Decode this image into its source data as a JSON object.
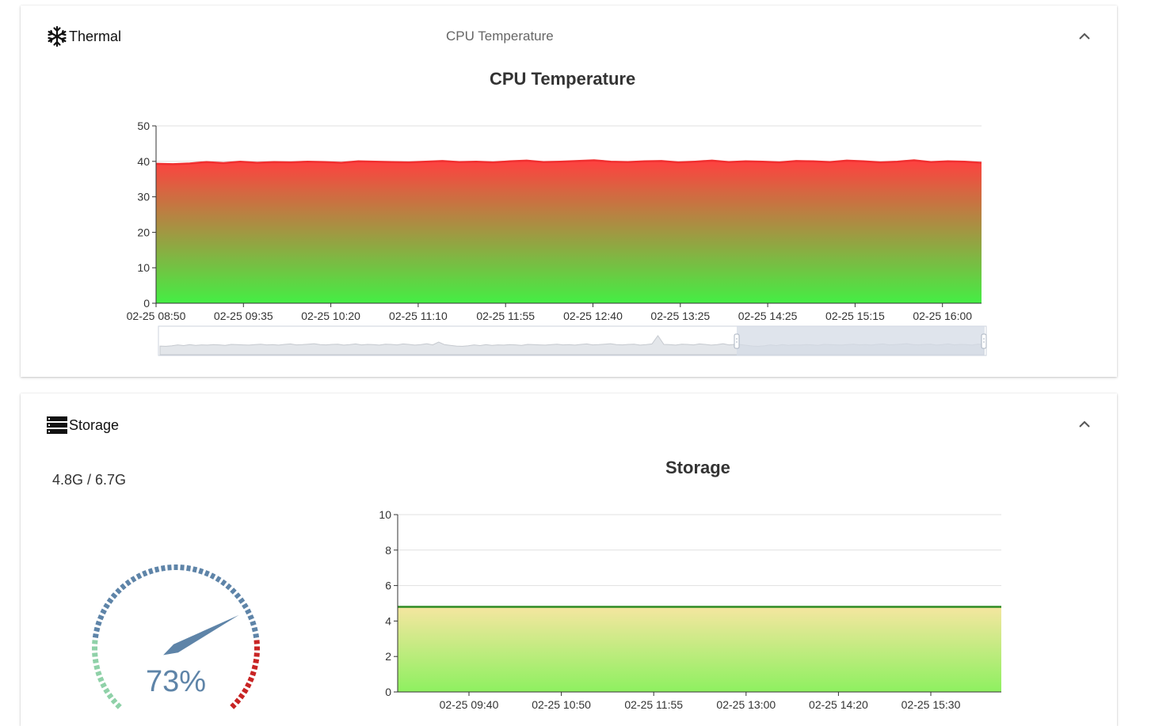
{
  "thermal": {
    "title": "Thermal",
    "subtitle": "CPU Temperature",
    "chart_title": "CPU Temperature",
    "icon": "snowflake-icon",
    "collapse_icon": "chevron-up-icon"
  },
  "storage": {
    "title": "Storage",
    "icon": "storage-icon",
    "usage_text": "4.8G / 6.7G",
    "gauge_percent_label": "73%",
    "gauge_value": 73,
    "chart_title": "Storage",
    "collapse_icon": "chevron-up-icon"
  },
  "colors": {
    "thermal_line": "#f03030",
    "thermal_fill_top": "#ff4040",
    "thermal_fill_bottom": "#44ee44",
    "storage_line": "#2e8b22",
    "storage_fill_top": "#f5e6a0",
    "storage_fill_bottom": "#8ef060",
    "gauge_blue": "#5e84a8",
    "gauge_green": "#8fd1a8",
    "gauge_red": "#c82424",
    "datazoom_fill": "#d4dbe6"
  },
  "chart_data": [
    {
      "type": "area",
      "title": "CPU Temperature",
      "x_ticks": [
        "02-25 08:50",
        "02-25 09:35",
        "02-25 10:20",
        "02-25 11:10",
        "02-25 11:55",
        "02-25 12:40",
        "02-25 13:25",
        "02-25 14:25",
        "02-25 15:15",
        "02-25 16:00"
      ],
      "y_ticks": [
        0,
        10,
        20,
        30,
        40,
        50
      ],
      "ylim": [
        0,
        50
      ],
      "grid": true,
      "series": [
        {
          "values": [
            39.3,
            39.2,
            39.4,
            39.8,
            39.5,
            39.9,
            39.6,
            39.8,
            39.7,
            39.9,
            39.8,
            39.6,
            40.0,
            39.9,
            39.8,
            39.7,
            39.9,
            40.1,
            39.8,
            39.9,
            39.7,
            40.0,
            40.2,
            39.8,
            39.9,
            40.1,
            40.3,
            39.9,
            39.8,
            40.0,
            40.1,
            39.7,
            39.9,
            40.2,
            39.8,
            40.0,
            39.9,
            39.7,
            40.1,
            40.0,
            39.8,
            40.2,
            40.0,
            39.7,
            39.9,
            40.3,
            39.8,
            40.0,
            39.9,
            39.6
          ]
        }
      ]
    },
    {
      "type": "area",
      "title": "Storage",
      "x_ticks": [
        "02-25 09:40",
        "02-25 10:50",
        "02-25 11:55",
        "02-25 13:00",
        "02-25 14:20",
        "02-25 15:30"
      ],
      "y_ticks": [
        0,
        2,
        4,
        6,
        8,
        10
      ],
      "ylim": [
        0,
        10
      ],
      "grid": true,
      "series": [
        {
          "values": [
            4.8,
            4.8
          ]
        }
      ]
    },
    {
      "type": "gauge",
      "value": 73,
      "label": "73%"
    }
  ]
}
